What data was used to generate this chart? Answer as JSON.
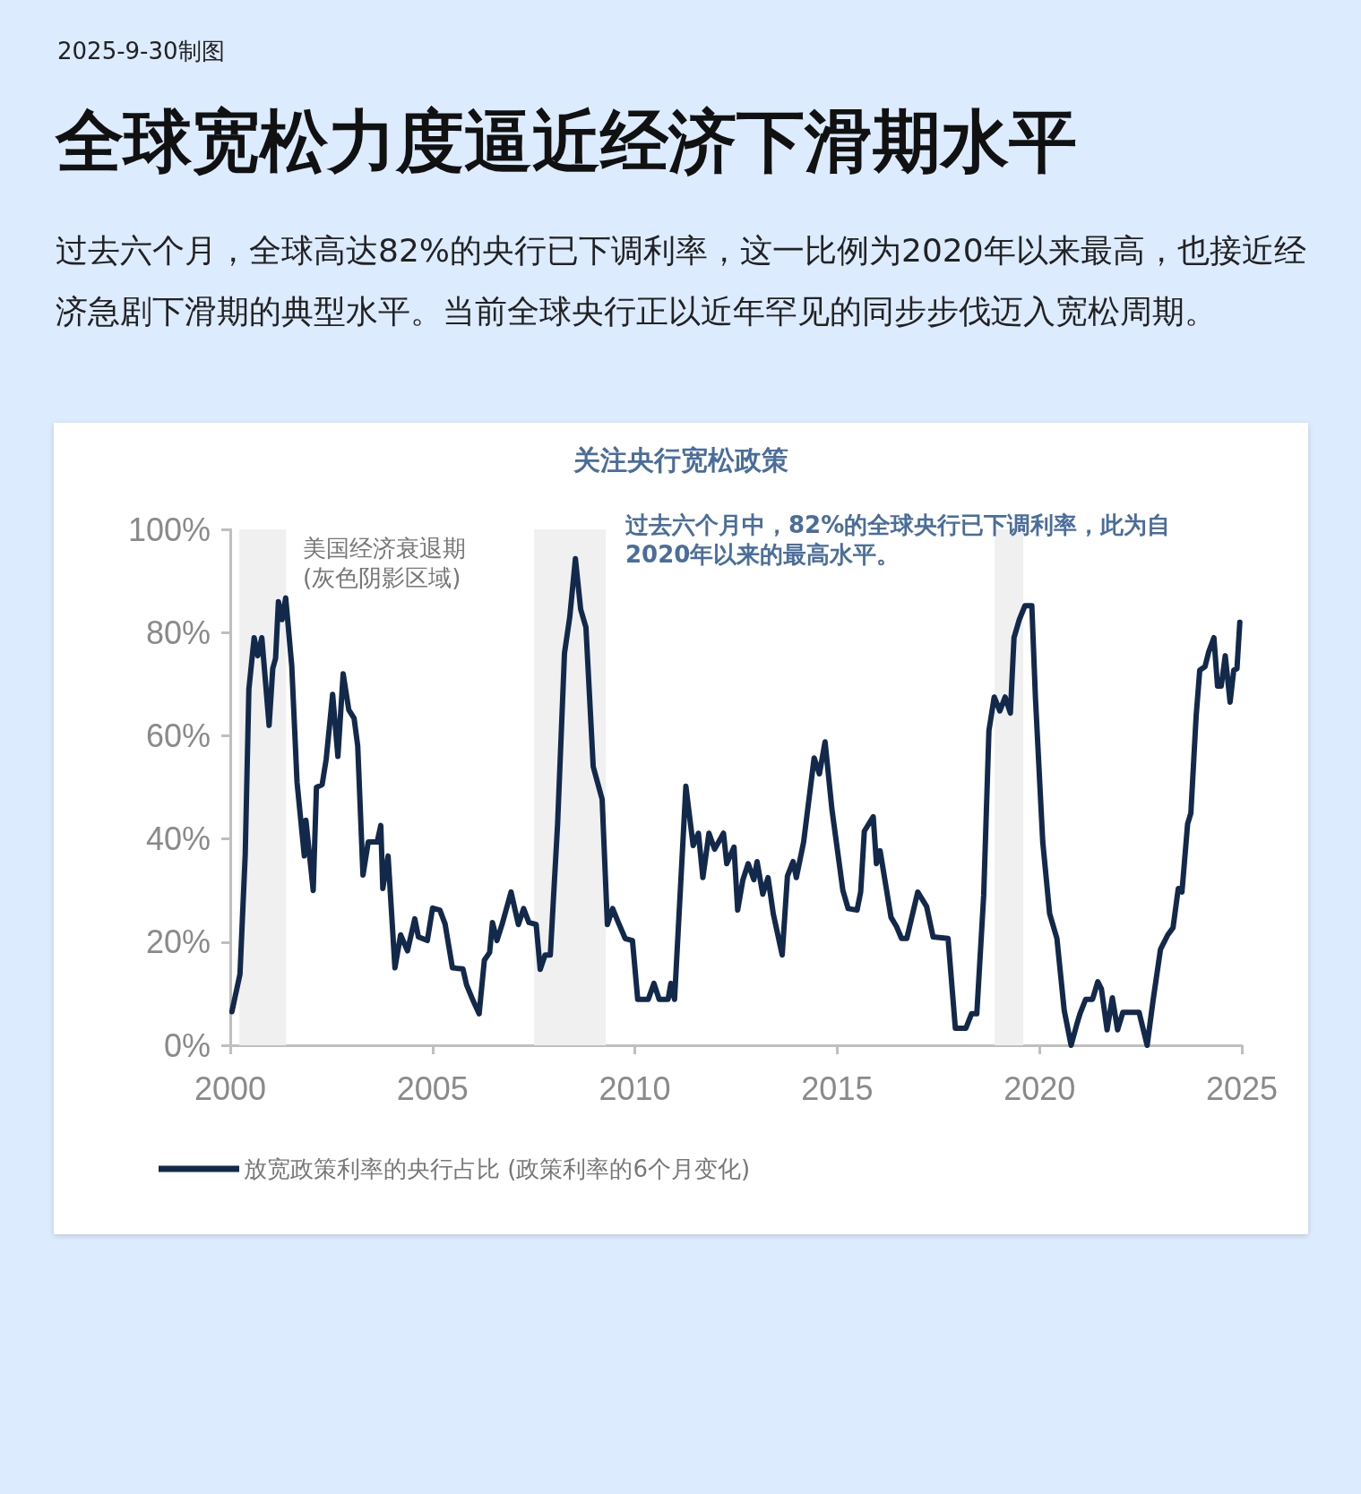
{
  "chart_data": {
    "type": "line",
    "title": "全球宽松力度逼近经济下滑期水平",
    "subtitle": "过去六个月，全球高达82%的央行已下调利率，这一比例为2020年以来最高，也接近经济急剧下滑期的典型水平。当前全球央行正以近年罕见的同步步伐迈入宽松周期。",
    "annotations": [
      "2025-9-30制图",
      "关注央行宽松政策",
      "美国经济衰退期\n(灰色阴影区域)",
      "过去六个月中，82%的全球央行已下调利率，此为自2020年以来的最高水平。"
    ],
    "x": [
      2000.04,
      2000.24,
      2000.37,
      2000.46,
      2000.59,
      2000.68,
      2000.78,
      2000.96,
      2001.05,
      2001.12,
      2001.19,
      2001.28,
      2001.37,
      2001.52,
      2001.65,
      2001.83,
      2001.87,
      2002.05,
      2002.13,
      2002.27,
      2002.37,
      2002.53,
      2002.66,
      2002.79,
      2002.93,
      2003.06,
      2003.15,
      2003.28,
      2003.41,
      2003.63,
      2003.72,
      2003.77,
      2003.9,
      2004.07,
      2004.21,
      2004.38,
      2004.56,
      2004.65,
      2004.87,
      2005.0,
      2005.18,
      2005.31,
      2005.49,
      2005.75,
      2005.84,
      2006.01,
      2006.15,
      2006.28,
      2006.41,
      2006.48,
      2006.59,
      2006.72,
      2006.94,
      2007.12,
      2007.25,
      2007.38,
      2007.56,
      2007.66,
      2007.78,
      2007.91,
      2008.09,
      2008.26,
      2008.39,
      2008.53,
      2008.66,
      2008.79,
      2008.97,
      2009.19,
      2009.32,
      2009.45,
      2009.59,
      2009.76,
      2009.94,
      2010.07,
      2010.33,
      2010.47,
      2010.6,
      2010.82,
      2010.89,
      2010.98,
      2011.26,
      2011.44,
      2011.57,
      2011.68,
      2011.83,
      2011.97,
      2012.19,
      2012.27,
      2012.45,
      2012.54,
      2012.67,
      2012.8,
      2012.94,
      2013.02,
      2013.16,
      2013.29,
      2013.42,
      2013.64,
      2013.77,
      2013.91,
      2013.99,
      2014.17,
      2014.43,
      2014.56,
      2014.7,
      2014.87,
      2015.14,
      2015.27,
      2015.49,
      2015.58,
      2015.67,
      2015.89,
      2015.97,
      2016.06,
      2016.33,
      2016.46,
      2016.59,
      2016.72,
      2016.99,
      2017.21,
      2017.37,
      2017.74,
      2017.92,
      2018.18,
      2018.32,
      2018.45,
      2018.62,
      2018.75,
      2018.88,
      2019.02,
      2019.15,
      2019.28,
      2019.37,
      2019.5,
      2019.64,
      2019.81,
      2019.9,
      2020.08,
      2020.25,
      2020.43,
      2020.61,
      2020.78,
      2020.92,
      2021.0,
      2021.14,
      2021.31,
      2021.44,
      2021.53,
      2021.67,
      2021.8,
      2021.93,
      2022.06,
      2022.46,
      2022.66,
      2022.81,
      2022.99,
      2023.17,
      2023.3,
      2023.43,
      2023.52,
      2023.66,
      2023.74,
      2023.87,
      2023.96,
      2024.09,
      2024.18,
      2024.31,
      2024.4,
      2024.49,
      2024.59,
      2024.71,
      2024.8,
      2024.88,
      2024.95
    ],
    "series": [
      {
        "name": "放宽政策利率的央行占比 (政策利率的6个月变化)",
        "color": "#13294b",
        "values": [
          6.5,
          13.8,
          37,
          69,
          79,
          75.5,
          79,
          62,
          73,
          75,
          86,
          82.5,
          86.7,
          73.5,
          51,
          36.7,
          43.6,
          30,
          50,
          50.5,
          55.4,
          68,
          56,
          72,
          65,
          63.4,
          58,
          33,
          39.4,
          39.4,
          42.6,
          30.4,
          36.7,
          15,
          21.4,
          18.3,
          24.5,
          21,
          20.3,
          26.6,
          26.2,
          23.5,
          15,
          14.8,
          11.7,
          8.5,
          6.1,
          16.5,
          18,
          23.8,
          20.3,
          23.5,
          29.7,
          23.4,
          26.5,
          23.8,
          23.4,
          14.7,
          17.5,
          17.5,
          42.9,
          76,
          83,
          94.3,
          84.5,
          81,
          54,
          47.7,
          23.4,
          26.5,
          23.8,
          20.7,
          20.3,
          8.9,
          8.9,
          12,
          8.9,
          8.9,
          12,
          8.9,
          50.2,
          38.7,
          41.1,
          32.5,
          41.1,
          38,
          41.1,
          35.2,
          38.4,
          26.2,
          32.1,
          35.2,
          32.1,
          35.6,
          29.3,
          32.5,
          25.5,
          17.5,
          32.8,
          35.6,
          32.5,
          39.4,
          55.7,
          52.6,
          58.8,
          45.7,
          30,
          26.5,
          26.2,
          29.7,
          41.5,
          44.3,
          35.2,
          37.7,
          24.8,
          23.1,
          20.7,
          20.7,
          29.7,
          26.9,
          21,
          20.7,
          3.3,
          3.3,
          6.1,
          6.1,
          29,
          61,
          67.5,
          64.8,
          67.5,
          64.4,
          79,
          82.5,
          85.2,
          85.2,
          67.2,
          39.4,
          25.5,
          20.7,
          6.8,
          0,
          4,
          6.1,
          8.9,
          8.9,
          12.3,
          10.9,
          3,
          9.2,
          3,
          6.4,
          6.4,
          0,
          8.9,
          18.6,
          21.4,
          22.8,
          30.4,
          29.7,
          42.9,
          45,
          63.7,
          72.7,
          73.4,
          76.2,
          79,
          69.6,
          69.6,
          75.5,
          66.5,
          72.7,
          73,
          82
        ]
      }
    ],
    "bands": [
      {
        "axis": "x",
        "from": 2000.22,
        "to": 2001.38,
        "color": "#f0f0f0"
      },
      {
        "axis": "x",
        "from": 2007.51,
        "to": 2009.28,
        "color": "#f0f0f0"
      },
      {
        "axis": "x",
        "from": 2018.89,
        "to": 2019.6,
        "color": "#f0f0f0"
      }
    ],
    "xlim": [
      2000,
      2025
    ],
    "xticks": [
      2000,
      2005,
      2010,
      2015,
      2020,
      2025
    ],
    "ylim": [
      0,
      100
    ],
    "yticks": [
      {
        "value": 0,
        "label": "0%"
      },
      {
        "value": 20,
        "label": "20%"
      },
      {
        "value": 40,
        "label": "40%"
      },
      {
        "value": 60,
        "label": "60%"
      },
      {
        "value": 80,
        "label": "80%"
      },
      {
        "value": 100,
        "label": "100%"
      }
    ],
    "legend": "bottom left",
    "line_style": "solid",
    "marker": "none"
  }
}
